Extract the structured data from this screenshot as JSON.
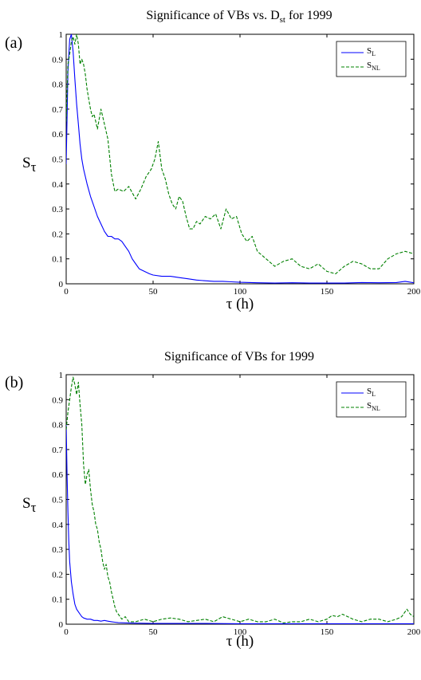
{
  "chart_data": [
    {
      "type": "line",
      "panel_label": "(a)",
      "title_main": "Significance of VBs vs. D",
      "title_sub": "st",
      "title_tail": " for 1999",
      "xlabel": "τ (h)",
      "ylabel_main": "S",
      "ylabel_sub": "τ",
      "xlim": [
        0,
        200
      ],
      "ylim": [
        0,
        1
      ],
      "xticks": [
        0,
        50,
        100,
        150,
        200
      ],
      "yticks": [
        0,
        0.1,
        0.2,
        0.3,
        0.4,
        0.5,
        0.6,
        0.7,
        0.8,
        0.9,
        1
      ],
      "legend_position": "top-right",
      "series": [
        {
          "legend_main": "S",
          "legend_sub": "L",
          "color": "#0000ff",
          "style": "solid",
          "x": [
            0,
            1,
            2,
            3,
            4,
            5,
            6,
            7,
            8,
            9,
            10,
            12,
            14,
            16,
            18,
            20,
            22,
            24,
            26,
            28,
            30,
            32,
            34,
            36,
            38,
            40,
            42,
            45,
            48,
            50,
            55,
            60,
            65,
            70,
            75,
            80,
            85,
            90,
            95,
            100,
            110,
            120,
            130,
            140,
            150,
            160,
            170,
            180,
            190,
            195,
            200
          ],
          "y": [
            0.48,
            0.85,
            0.98,
            1.0,
            0.93,
            0.82,
            0.72,
            0.64,
            0.56,
            0.5,
            0.46,
            0.4,
            0.35,
            0.31,
            0.27,
            0.24,
            0.21,
            0.19,
            0.19,
            0.18,
            0.18,
            0.17,
            0.15,
            0.13,
            0.1,
            0.08,
            0.06,
            0.05,
            0.04,
            0.035,
            0.03,
            0.03,
            0.025,
            0.02,
            0.015,
            0.012,
            0.01,
            0.01,
            0.008,
            0.006,
            0.004,
            0.003,
            0.004,
            0.003,
            0.003,
            0.003,
            0.005,
            0.004,
            0.005,
            0.01,
            0.004
          ]
        },
        {
          "legend_main": "S",
          "legend_sub": "NL",
          "color": "#008000",
          "style": "dashed",
          "x": [
            0,
            1,
            2,
            3,
            4,
            5,
            6,
            7,
            8,
            9,
            10,
            11,
            12,
            13,
            14,
            15,
            16,
            17,
            18,
            19,
            20,
            22,
            24,
            26,
            28,
            30,
            33,
            36,
            40,
            43,
            46,
            49,
            51,
            53,
            55,
            57,
            59,
            61,
            63,
            65,
            67,
            69,
            71,
            73,
            75,
            77,
            80,
            83,
            86,
            89,
            92,
            95,
            98,
            101,
            104,
            107,
            110,
            115,
            120,
            125,
            130,
            135,
            140,
            145,
            150,
            155,
            160,
            165,
            170,
            175,
            180,
            185,
            190,
            195,
            200
          ],
          "y": [
            0.65,
            0.88,
            0.92,
            0.97,
            0.99,
            0.96,
            1.0,
            0.96,
            0.88,
            0.9,
            0.88,
            0.84,
            0.78,
            0.74,
            0.7,
            0.67,
            0.68,
            0.65,
            0.62,
            0.66,
            0.7,
            0.64,
            0.58,
            0.44,
            0.37,
            0.38,
            0.37,
            0.39,
            0.34,
            0.38,
            0.43,
            0.46,
            0.5,
            0.57,
            0.46,
            0.42,
            0.36,
            0.32,
            0.3,
            0.35,
            0.33,
            0.27,
            0.22,
            0.22,
            0.25,
            0.24,
            0.27,
            0.26,
            0.28,
            0.22,
            0.3,
            0.26,
            0.27,
            0.2,
            0.17,
            0.19,
            0.13,
            0.1,
            0.07,
            0.09,
            0.1,
            0.07,
            0.06,
            0.08,
            0.05,
            0.04,
            0.07,
            0.09,
            0.08,
            0.06,
            0.06,
            0.1,
            0.12,
            0.13,
            0.12
          ]
        }
      ]
    },
    {
      "type": "line",
      "panel_label": "(b)",
      "title_main": "Significance of VBs for 1999",
      "title_sub": "",
      "title_tail": "",
      "xlabel": "τ (h)",
      "ylabel_main": "S",
      "ylabel_sub": "τ",
      "xlim": [
        0,
        200
      ],
      "ylim": [
        0,
        1
      ],
      "xticks": [
        0,
        50,
        100,
        150,
        200
      ],
      "yticks": [
        0,
        0.1,
        0.2,
        0.3,
        0.4,
        0.5,
        0.6,
        0.7,
        0.8,
        0.9,
        1
      ],
      "legend_position": "top-right",
      "series": [
        {
          "legend_main": "S",
          "legend_sub": "L",
          "color": "#0000ff",
          "style": "solid",
          "x": [
            0,
            0.5,
            1,
            1.5,
            2,
            3,
            4,
            5,
            6,
            7,
            8,
            9,
            10,
            12,
            14,
            16,
            18,
            20,
            22,
            24,
            26,
            28,
            30,
            35,
            40,
            50,
            60,
            80,
            100,
            120,
            140,
            160,
            180,
            200
          ],
          "y": [
            0.8,
            0.6,
            0.45,
            0.33,
            0.25,
            0.17,
            0.12,
            0.08,
            0.06,
            0.05,
            0.04,
            0.03,
            0.025,
            0.02,
            0.02,
            0.015,
            0.015,
            0.012,
            0.015,
            0.012,
            0.01,
            0.008,
            0.006,
            0.005,
            0.004,
            0.003,
            0.003,
            0.003,
            0.002,
            0.002,
            0.002,
            0.002,
            0.002,
            0.002
          ]
        },
        {
          "legend_main": "S",
          "legend_sub": "NL",
          "color": "#008000",
          "style": "dashed",
          "x": [
            0,
            1,
            2,
            3,
            4,
            5,
            6,
            7,
            8,
            9,
            10,
            11,
            12,
            13,
            14,
            15,
            16,
            17,
            18,
            19,
            20,
            21,
            22,
            23,
            24,
            25,
            26,
            27,
            28,
            29,
            30,
            32,
            34,
            36,
            40,
            45,
            50,
            55,
            60,
            65,
            70,
            75,
            80,
            85,
            90,
            95,
            100,
            105,
            110,
            115,
            120,
            125,
            130,
            135,
            140,
            145,
            150,
            153,
            156,
            159,
            162,
            165,
            170,
            175,
            180,
            185,
            190,
            193,
            196,
            198,
            200
          ],
          "y": [
            0.78,
            0.85,
            0.9,
            0.95,
            0.99,
            0.96,
            0.92,
            0.97,
            0.88,
            0.8,
            0.64,
            0.56,
            0.6,
            0.62,
            0.54,
            0.48,
            0.45,
            0.4,
            0.38,
            0.33,
            0.3,
            0.25,
            0.22,
            0.24,
            0.19,
            0.17,
            0.13,
            0.1,
            0.07,
            0.05,
            0.04,
            0.02,
            0.03,
            0.01,
            0.01,
            0.02,
            0.01,
            0.02,
            0.025,
            0.02,
            0.01,
            0.015,
            0.02,
            0.01,
            0.03,
            0.02,
            0.01,
            0.02,
            0.01,
            0.01,
            0.02,
            0.005,
            0.01,
            0.01,
            0.02,
            0.01,
            0.02,
            0.035,
            0.03,
            0.04,
            0.03,
            0.02,
            0.01,
            0.02,
            0.02,
            0.01,
            0.02,
            0.03,
            0.06,
            0.04,
            0.03
          ]
        }
      ]
    }
  ]
}
